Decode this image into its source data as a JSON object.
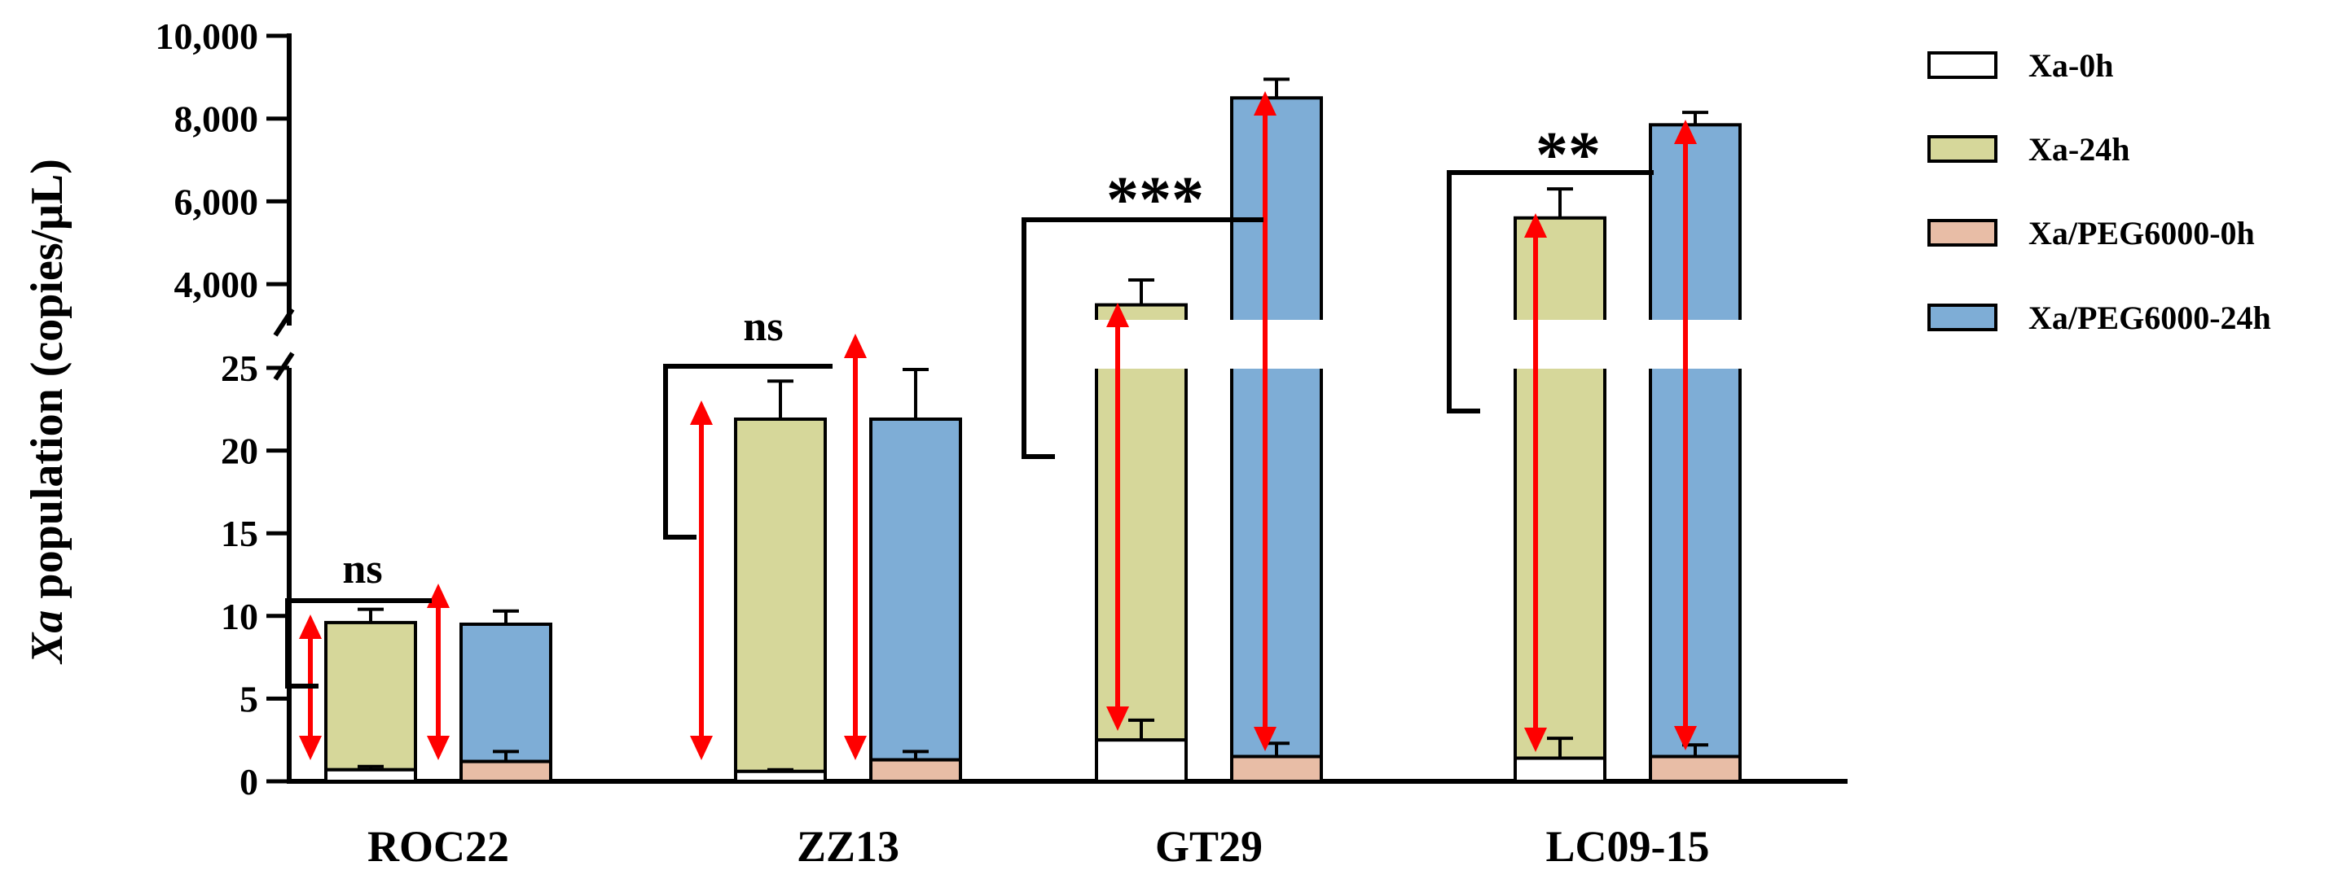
{
  "chart_data": {
    "type": "bar",
    "ylabel_italic": "Xa",
    "ylabel_rest": " population (copies/μL)",
    "xlabel": "",
    "categories": [
      "ROC22",
      "ZZ13",
      "GT29",
      "LC09-15"
    ],
    "broken_axis": {
      "lower_range": [
        0,
        25
      ],
      "upper_range": [
        3000,
        10000
      ],
      "lower_ticks": [
        0,
        5,
        10,
        15,
        20,
        25
      ],
      "lower_tick_labels": [
        "0",
        "5",
        "10",
        "15",
        "20",
        "25"
      ],
      "upper_ticks": [
        4000,
        6000,
        8000,
        10000
      ],
      "upper_tick_labels": [
        "4,000",
        "6,000",
        "8,000",
        "10,000"
      ]
    },
    "series": [
      {
        "name": "Xa-0h",
        "color": "#ffffff",
        "values": [
          0.7,
          0.6,
          2.5,
          1.4
        ],
        "errors": [
          0.2,
          0.1,
          1.2,
          1.2
        ]
      },
      {
        "name": "Xa-24h",
        "color": "#d6d79a",
        "values": [
          9.6,
          21.9,
          3500,
          5600
        ],
        "errors": [
          0.8,
          2.3,
          600,
          700
        ]
      },
      {
        "name": "Xa/PEG6000-0h",
        "color": "#e8bda6",
        "values": [
          1.2,
          1.3,
          1.5,
          1.5
        ],
        "errors": [
          0.6,
          0.5,
          0.8,
          0.7
        ]
      },
      {
        "name": "Xa/PEG6000-24h",
        "color": "#7eadd6",
        "values": [
          9.5,
          21.9,
          8500,
          7850
        ],
        "errors": [
          0.8,
          3.0,
          450,
          300
        ]
      }
    ],
    "significance": [
      "ns",
      "ns",
      "***",
      "**"
    ],
    "legend_position": "right"
  }
}
